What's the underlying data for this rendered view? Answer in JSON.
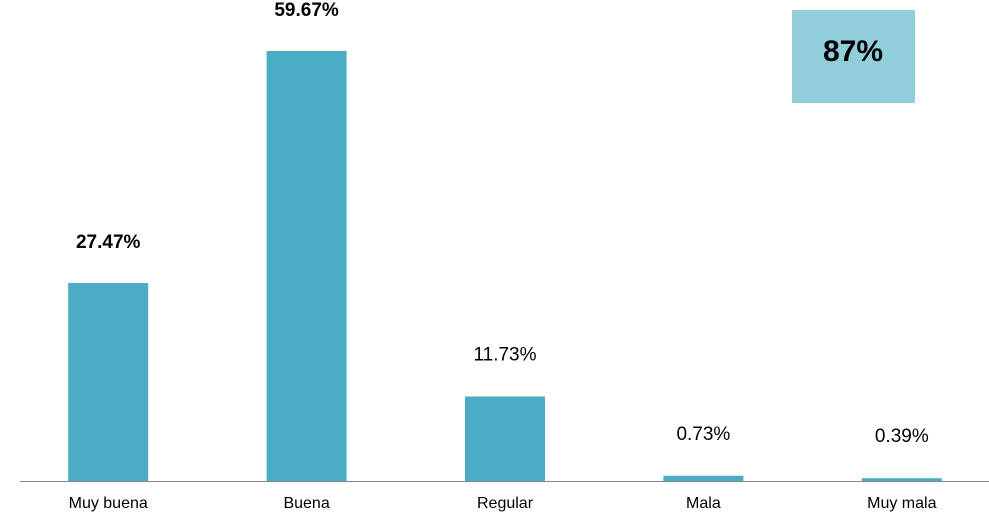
{
  "chart_data": {
    "type": "bar",
    "categories": [
      "Muy buena",
      "Buena",
      "Regular",
      "Mala",
      "Muy mala"
    ],
    "values": [
      27.47,
      59.67,
      11.73,
      0.73,
      0.39
    ],
    "value_labels": [
      "27.47%",
      "59.67%",
      "11.73%",
      "0.73%",
      "0.39%"
    ],
    "value_label_bold": [
      true,
      true,
      false,
      false,
      false
    ],
    "color": "#4bacc6",
    "annotation": {
      "text": "87%",
      "color": "#92cddc"
    }
  }
}
